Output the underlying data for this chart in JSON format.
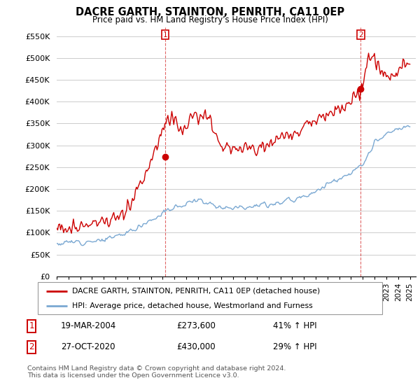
{
  "title": "DACRE GARTH, STAINTON, PENRITH, CA11 0EP",
  "subtitle": "Price paid vs. HM Land Registry's House Price Index (HPI)",
  "ylim": [
    0,
    570000
  ],
  "yticks": [
    0,
    50000,
    100000,
    150000,
    200000,
    250000,
    300000,
    350000,
    400000,
    450000,
    500000,
    550000
  ],
  "ytick_labels": [
    "£0",
    "£50K",
    "£100K",
    "£150K",
    "£200K",
    "£250K",
    "£300K",
    "£350K",
    "£400K",
    "£450K",
    "£500K",
    "£550K"
  ],
  "xlim_start": 1995.0,
  "xlim_end": 2025.5,
  "red_line_color": "#cc0000",
  "blue_line_color": "#7aa8d2",
  "marker1_date": 2004.22,
  "marker1_value": 273600,
  "marker2_date": 2020.83,
  "marker2_value": 430000,
  "legend_line1": "DACRE GARTH, STAINTON, PENRITH, CA11 0EP (detached house)",
  "legend_line2": "HPI: Average price, detached house, Westmorland and Furness",
  "table_row1_num": "1",
  "table_row1_date": "19-MAR-2004",
  "table_row1_price": "£273,600",
  "table_row1_hpi": "41% ↑ HPI",
  "table_row2_num": "2",
  "table_row2_date": "27-OCT-2020",
  "table_row2_price": "£430,000",
  "table_row2_hpi": "29% ↑ HPI",
  "footer": "Contains HM Land Registry data © Crown copyright and database right 2024.\nThis data is licensed under the Open Government Licence v3.0.",
  "background_color": "#ffffff",
  "grid_color": "#cccccc"
}
